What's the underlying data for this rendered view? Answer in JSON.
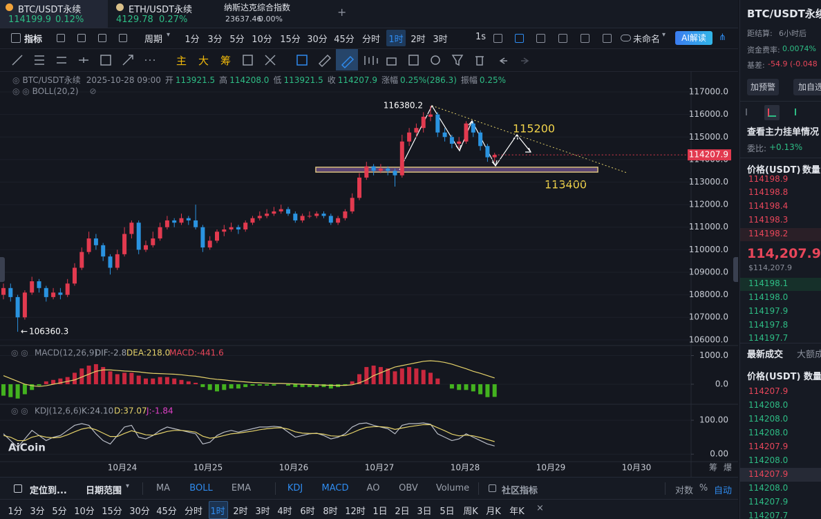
{
  "tabs": [
    {
      "symbol": "BTC/USDT永续",
      "price": "114199.9",
      "change": "0.12%"
    },
    {
      "symbol": "ETH/USDT永续",
      "price": "4129.78",
      "change": "0.27%"
    },
    {
      "symbol": "纳斯达克综合指数",
      "price": "23637.46",
      "change": "0.00%"
    }
  ],
  "toolbar": {
    "indicator": "指标",
    "period": "周期",
    "intervals": [
      "1分",
      "3分",
      "5分",
      "10分",
      "15分",
      "30分",
      "45分",
      "分时",
      "1时",
      "2时",
      "3时"
    ],
    "active_interval": "1时",
    "seconds": "1s",
    "layout_name": "未命名",
    "ai": "AI解读"
  },
  "drawing_tools": [
    "主",
    "大",
    "筹"
  ],
  "axis_buttons": [
    "筹",
    "爆"
  ],
  "watermark": "AiCoin",
  "chart_data": [
    {
      "type": "candlestick",
      "info": {
        "symbol": "BTC/USDT永续",
        "time": "2025-10-28 09:00",
        "fields": [
          {
            "label": "开",
            "value": "113921.5"
          },
          {
            "label": "高",
            "value": "114208.0"
          },
          {
            "label": "低",
            "value": "113921.5"
          },
          {
            "label": "收",
            "value": "114207.9"
          },
          {
            "label": "涨幅",
            "value": "0.25%(286.3)"
          },
          {
            "label": "振幅",
            "value": "0.25%"
          }
        ],
        "indicator": "BOLL(20,2)"
      },
      "colors": {
        "up": "#e23a4f",
        "down": "#2a93e0"
      },
      "ylim": [
        105750,
        117920
      ],
      "yticks": [
        {
          "value": 117000,
          "label": "117000.0"
        },
        {
          "value": 116000,
          "label": "116000.0"
        },
        {
          "value": 115000,
          "label": "115000.0"
        },
        {
          "value": 114000,
          "label": "114000.0"
        },
        {
          "value": 113000,
          "label": "113000.0"
        },
        {
          "value": 112000,
          "label": "112000.0"
        },
        {
          "value": 111000,
          "label": "111000.0"
        },
        {
          "value": 110000,
          "label": "110000.0"
        },
        {
          "value": 109000,
          "label": "109000.0"
        },
        {
          "value": 108000,
          "label": "108000.0"
        },
        {
          "value": 107000,
          "label": "107000.0"
        },
        {
          "value": 106000,
          "label": "106000.0"
        }
      ],
      "xticks": [
        "10月24",
        "10月25",
        "10月26",
        "10月27",
        "10月28",
        "10月29",
        "10月30"
      ],
      "last_price": 114207.9,
      "annotations": {
        "peak": "116380.2",
        "target": "115200",
        "support": "113400",
        "low": "106360.3"
      },
      "ohlc": [
        [
          108000,
          108500,
          107800,
          108300
        ],
        [
          108300,
          108500,
          107700,
          107900
        ],
        [
          107900,
          108000,
          106360.3,
          107000
        ],
        [
          107000,
          108200,
          106900,
          108100
        ],
        [
          108100,
          108800,
          108000,
          108600
        ],
        [
          108600,
          108700,
          108100,
          108300
        ],
        [
          108300,
          108400,
          107700,
          107900
        ],
        [
          107900,
          108300,
          107800,
          108100
        ],
        [
          108100,
          108300,
          107800,
          108000
        ],
        [
          108000,
          108700,
          107900,
          108500
        ],
        [
          108500,
          109400,
          108400,
          109200
        ],
        [
          109200,
          110100,
          109100,
          109900
        ],
        [
          109900,
          110800,
          109800,
          110500
        ],
        [
          110500,
          110700,
          110000,
          110200
        ],
        [
          110200,
          110300,
          109500,
          109700
        ],
        [
          109700,
          109800,
          108900,
          109200
        ],
        [
          109200,
          110000,
          109100,
          109800
        ],
        [
          109800,
          111000,
          109700,
          110700
        ],
        [
          110700,
          111300,
          110500,
          111200
        ],
        [
          111200,
          111300,
          109800,
          110000
        ],
        [
          110000,
          110400,
          109900,
          110200
        ],
        [
          110200,
          110800,
          110100,
          110500
        ],
        [
          110500,
          111200,
          110400,
          111000
        ],
        [
          111000,
          111500,
          110900,
          111300
        ],
        [
          111300,
          111400,
          111000,
          111200
        ],
        [
          111200,
          111600,
          111100,
          111400
        ],
        [
          111400,
          111500,
          111100,
          111300
        ],
        [
          111300,
          112000,
          110900,
          111000
        ],
        [
          111000,
          111100,
          109900,
          110100
        ],
        [
          110100,
          110600,
          110000,
          110400
        ],
        [
          110400,
          110900,
          110300,
          110800
        ],
        [
          110800,
          111100,
          110600,
          110900
        ],
        [
          110900,
          111200,
          110800,
          111000
        ],
        [
          111000,
          111100,
          110700,
          110900
        ],
        [
          110900,
          111300,
          110800,
          111200
        ],
        [
          111200,
          111500,
          111100,
          111400
        ],
        [
          111400,
          111700,
          111300,
          111500
        ],
        [
          111500,
          111800,
          111400,
          111600
        ],
        [
          111600,
          111900,
          111500,
          111700
        ],
        [
          111700,
          112000,
          111600,
          111800
        ],
        [
          111800,
          111900,
          111500,
          111600
        ],
        [
          111600,
          111700,
          111200,
          111300
        ],
        [
          111300,
          111600,
          111200,
          111500
        ],
        [
          111500,
          111700,
          111400,
          111500
        ],
        [
          111500,
          111700,
          111400,
          111600
        ],
        [
          111600,
          111700,
          111400,
          111500
        ],
        [
          111500,
          111600,
          111100,
          111200
        ],
        [
          111200,
          111500,
          111100,
          111400
        ],
        [
          111400,
          111800,
          111300,
          111700
        ],
        [
          111700,
          112500,
          111600,
          112300
        ],
        [
          112300,
          113400,
          112200,
          113200
        ],
        [
          113200,
          113900,
          113100,
          113700
        ],
        [
          113700,
          113800,
          113300,
          113500
        ],
        [
          113500,
          113800,
          113400,
          113600
        ],
        [
          113600,
          113700,
          113300,
          113500
        ],
        [
          113500,
          113600,
          112800,
          113300
        ],
        [
          113300,
          115100,
          113200,
          114800
        ],
        [
          114800,
          115400,
          114600,
          115200
        ],
        [
          115200,
          115600,
          115000,
          115400
        ],
        [
          115400,
          116100,
          115200,
          115900
        ],
        [
          115900,
          116380.2,
          115700,
          116000
        ],
        [
          116000,
          116100,
          115000,
          115200
        ],
        [
          115200,
          115400,
          114800,
          115000
        ],
        [
          115000,
          115100,
          114500,
          114700
        ],
        [
          114700,
          115000,
          114500,
          114800
        ],
        [
          114800,
          115700,
          114700,
          115600
        ],
        [
          115600,
          115700,
          115000,
          115200
        ],
        [
          115200,
          115300,
          114400,
          114600
        ],
        [
          114600,
          114700,
          113900,
          114100
        ],
        [
          114100,
          114300,
          113900,
          114207.9
        ]
      ]
    },
    {
      "type": "macd",
      "title": "MACD(12,26,9)",
      "readouts": [
        "DIF:-2.8",
        "DEA:218.0",
        "MACD:-441.6"
      ],
      "ylim": [
        -700,
        1350
      ],
      "yticks": [
        {
          "value": 1000,
          "label": "1000.0"
        },
        {
          "value": 0,
          "label": "0.0"
        }
      ],
      "histogram": [
        -400,
        -450,
        -500,
        -350,
        -200,
        -50,
        100,
        150,
        200,
        250,
        400,
        550,
        650,
        700,
        600,
        450,
        350,
        400,
        400,
        300,
        200,
        200,
        250,
        250,
        200,
        150,
        100,
        50,
        -100,
        -200,
        -250,
        -200,
        -150,
        -150,
        -100,
        -50,
        -50,
        -50,
        -50,
        0,
        -50,
        -100,
        -100,
        -100,
        -100,
        -100,
        -150,
        -100,
        -50,
        100,
        350,
        600,
        650,
        600,
        550,
        450,
        550,
        600,
        550,
        500,
        400,
        200,
        0,
        -150,
        -200,
        -200,
        -250,
        -350,
        -450,
        -441.6
      ],
      "signal": [
        300,
        200,
        100,
        0,
        -50,
        -80,
        -50,
        0,
        50,
        100,
        150,
        250,
        350,
        450,
        500,
        500,
        480,
        460,
        450,
        430,
        400,
        380,
        370,
        360,
        350,
        330,
        300,
        280,
        240,
        200,
        170,
        150,
        120,
        100,
        80,
        60,
        50,
        40,
        30,
        30,
        20,
        10,
        0,
        -10,
        -20,
        -30,
        -40,
        -40,
        -40,
        -20,
        50,
        150,
        300,
        400,
        500,
        600,
        650,
        700,
        750,
        800,
        820,
        800,
        760,
        700,
        620,
        540,
        450,
        380,
        300,
        218.0
      ]
    },
    {
      "type": "kdj",
      "title": "KDJ(12,6,6)",
      "readouts": [
        "K:24.10",
        "D:37.07",
        "J:-1.84"
      ],
      "ylim": [
        -22,
        147
      ],
      "yticks": [
        {
          "value": 100,
          "label": "100.00"
        },
        {
          "value": 0,
          "label": "0.00"
        }
      ],
      "k": [
        60,
        40,
        20,
        45,
        70,
        55,
        40,
        50,
        55,
        70,
        85,
        90,
        85,
        60,
        40,
        30,
        55,
        80,
        85,
        50,
        45,
        55,
        70,
        80,
        75,
        70,
        65,
        60,
        30,
        35,
        55,
        65,
        70,
        65,
        70,
        75,
        80,
        80,
        82,
        80,
        65,
        50,
        55,
        60,
        62,
        55,
        45,
        50,
        60,
        80,
        90,
        92,
        85,
        80,
        75,
        60,
        85,
        90,
        90,
        92,
        88,
        60,
        50,
        40,
        45,
        60,
        50,
        40,
        30,
        24.1
      ],
      "d": [
        55,
        50,
        40,
        40,
        50,
        55,
        50,
        48,
        50,
        57,
        66,
        74,
        78,
        72,
        62,
        52,
        52,
        61,
        69,
        63,
        57,
        56,
        61,
        67,
        70,
        70,
        68,
        65,
        53,
        47,
        50,
        55,
        60,
        62,
        65,
        68,
        72,
        75,
        77,
        78,
        74,
        66,
        62,
        61,
        61,
        59,
        54,
        53,
        55,
        63,
        72,
        79,
        81,
        81,
        79,
        73,
        77,
        81,
        84,
        87,
        87,
        78,
        69,
        59,
        54,
        56,
        54,
        49,
        43,
        37.07
      ]
    }
  ],
  "bottom_bar": {
    "locate": "定位到...",
    "date_range": "日期范围",
    "main_indicators": [
      "MA",
      "BOLL",
      "EMA"
    ],
    "active_main": "BOLL",
    "sub_indicators": [
      "KDJ",
      "MACD",
      "AO",
      "OBV",
      "Volume"
    ],
    "active_sub": [
      "KDJ",
      "MACD"
    ],
    "community": "社区指标",
    "scale_options": [
      "对数",
      "%",
      "自动"
    ],
    "active_scale": "自动",
    "intervals": [
      "1分",
      "3分",
      "5分",
      "10分",
      "15分",
      "30分",
      "45分",
      "分时",
      "1时",
      "2时",
      "3时",
      "4时",
      "6时",
      "8时",
      "12时",
      "1日",
      "2日",
      "3日",
      "5日",
      "周K",
      "月K",
      "年K"
    ],
    "active_interval": "1时",
    "close": "×"
  },
  "side_panel": {
    "symbol": "BTC/USDT永续",
    "stats": [
      {
        "label": "距结算:",
        "value": "6小时后"
      },
      {
        "label": "资金费率:",
        "value": "0.0074%"
      },
      {
        "label": "基差:",
        "value": "-54.9 (-0.048"
      }
    ],
    "buttons": [
      "加预警",
      "加自选"
    ],
    "depth_title": "查看主力挂单情况",
    "ratio_label": "委比:",
    "ratio": "+0.13%",
    "book_header": [
      "价格(USDT)",
      "数量"
    ],
    "asks": [
      "114198.9",
      "114198.8",
      "114198.4",
      "114198.3",
      "114198.2"
    ],
    "mid_price": "114,207.9",
    "mid_usd": "$114,207.9",
    "bids": [
      "114198.1",
      "114198.0",
      "114197.9",
      "114197.8",
      "114197.7"
    ],
    "trade_tabs": [
      "最新成交",
      "大额成"
    ],
    "trade_header": [
      "价格(USDT)",
      "数量"
    ],
    "trades": [
      {
        "price": "114207.9",
        "side": "sell"
      },
      {
        "price": "114208.0",
        "side": "buy"
      },
      {
        "price": "114208.0",
        "side": "buy"
      },
      {
        "price": "114208.0",
        "side": "buy"
      },
      {
        "price": "114207.9",
        "side": "sell"
      },
      {
        "price": "114208.0",
        "side": "buy"
      },
      {
        "price": "114207.9",
        "side": "sell"
      },
      {
        "price": "114208.0",
        "side": "buy"
      },
      {
        "price": "114207.9",
        "side": "buy"
      },
      {
        "price": "114207.7",
        "side": "buy"
      }
    ]
  }
}
